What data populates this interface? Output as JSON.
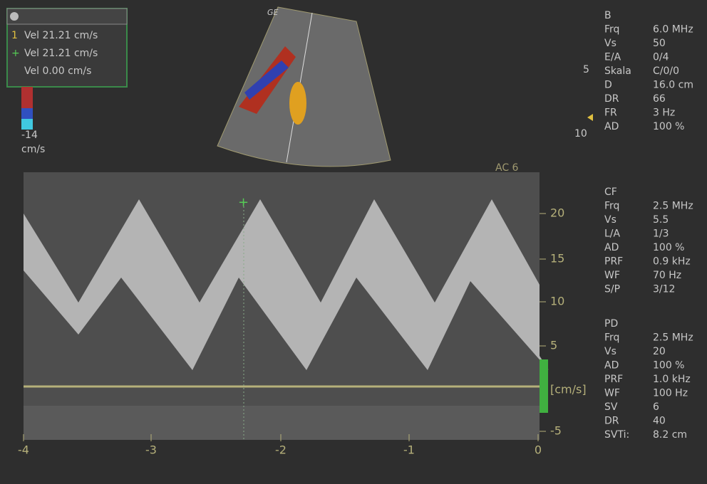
{
  "brand": "GE",
  "measurements": [
    {
      "marker": "1",
      "text": "Vel 21.21 cm/s"
    },
    {
      "marker": "+",
      "text": "Vel 21.21 cm/s"
    },
    {
      "marker": "",
      "text": "Vel 0.00 cm/s"
    }
  ],
  "color_scale": {
    "min": "-14",
    "unit": "cm/s"
  },
  "depth_scale": [
    "5",
    "10"
  ],
  "preset": "AC 6",
  "spectrum": {
    "y_ticks": [
      {
        "label": "20"
      },
      {
        "label": "15"
      },
      {
        "label": "10"
      },
      {
        "label": "5"
      },
      {
        "label": "-5"
      }
    ],
    "y_unit": "[cm/s]",
    "x_ticks": [
      "-4",
      "-3",
      "-2",
      "-1",
      "0"
    ]
  },
  "panels": [
    {
      "title": "B",
      "rows": [
        [
          "Frq",
          "6.0 MHz"
        ],
        [
          "Vs",
          "50"
        ],
        [
          "E/A",
          "0/4"
        ],
        [
          "Skala",
          "C/0/0"
        ],
        [
          "D",
          "16.0 cm"
        ],
        [
          "DR",
          "66"
        ],
        [
          "FR",
          "3 Hz"
        ],
        [
          "AD",
          "100 %"
        ]
      ]
    },
    {
      "title": "CF",
      "rows": [
        [
          "Frq",
          "2.5 MHz"
        ],
        [
          "Vs",
          "5.5"
        ],
        [
          "L/A",
          "1/3"
        ],
        [
          "AD",
          "100 %"
        ],
        [
          "PRF",
          "0.9 kHz"
        ],
        [
          "WF",
          "70 Hz"
        ],
        [
          "S/P",
          "3/12"
        ]
      ]
    },
    {
      "title": "PD",
      "rows": [
        [
          "Frq",
          "2.5 MHz"
        ],
        [
          "Vs",
          "20"
        ],
        [
          "AD",
          "100 %"
        ],
        [
          "PRF",
          "1.0 kHz"
        ],
        [
          "WF",
          "100 Hz"
        ],
        [
          "SV",
          "6"
        ],
        [
          "DR",
          "40"
        ],
        [
          "SVTi:",
          "8.2 cm"
        ]
      ]
    }
  ]
}
